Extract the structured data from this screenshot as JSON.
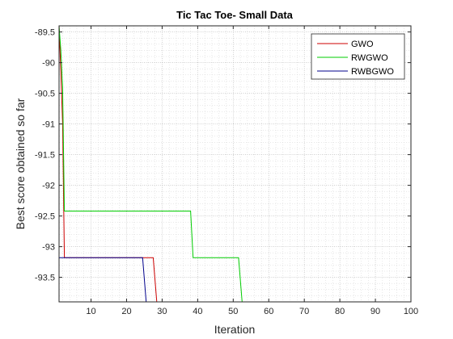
{
  "chart_data": {
    "type": "line",
    "title": "Tic Tac Toe- Small Data",
    "xlabel": "Iteration",
    "ylabel": "Best score obtained so far",
    "xlim": [
      1,
      100
    ],
    "ylim": [
      -93.9,
      -89.4
    ],
    "xticks": [
      10,
      20,
      30,
      40,
      50,
      60,
      70,
      80,
      90,
      100
    ],
    "yticks": [
      -89.5,
      -90,
      -90.5,
      -91,
      -91.5,
      -92,
      -92.5,
      -93,
      -93.5
    ],
    "grid": true,
    "minor_grid": true,
    "legend_position": "top-right",
    "series": [
      {
        "name": "GWO",
        "color": "#cc0000",
        "points": [
          [
            1,
            -89.4
          ],
          [
            1.5,
            -90.15
          ],
          [
            2,
            -91.0
          ],
          [
            2.5,
            -93.18
          ],
          [
            27.5,
            -93.18
          ],
          [
            28.5,
            -93.9
          ],
          [
            100,
            -93.9
          ]
        ]
      },
      {
        "name": "RWGWO",
        "color": "#00cc00",
        "points": [
          [
            1,
            -89.4
          ],
          [
            1.5,
            -89.8
          ],
          [
            2,
            -90.4
          ],
          [
            2.5,
            -92.42
          ],
          [
            38,
            -92.42
          ],
          [
            38.7,
            -93.18
          ],
          [
            51.5,
            -93.18
          ],
          [
            52.5,
            -93.9
          ],
          [
            100,
            -93.9
          ]
        ]
      },
      {
        "name": "RWBGWO",
        "color": "#00008b",
        "points": [
          [
            1,
            -93.18
          ],
          [
            24.5,
            -93.18
          ],
          [
            25.5,
            -93.9
          ],
          [
            100,
            -93.9
          ]
        ]
      }
    ]
  }
}
